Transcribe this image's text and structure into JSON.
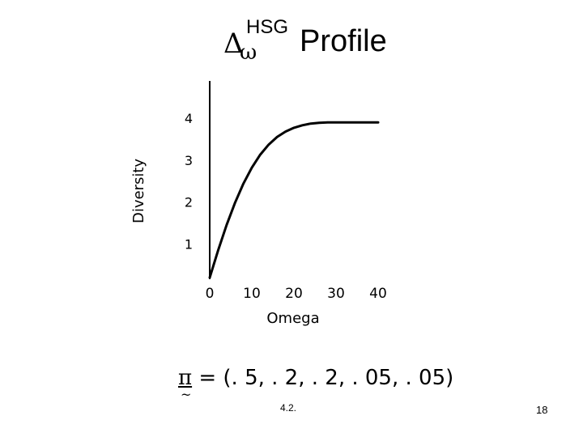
{
  "title": {
    "delta": "Δ",
    "subscript": "ω",
    "superscript": "HSG",
    "main": "Profile"
  },
  "chart_data": {
    "type": "line",
    "xlabel": "Omega",
    "ylabel": "Diversity",
    "x_ticks": [
      "0",
      "10",
      "20",
      "30",
      "40"
    ],
    "y_ticks": [
      "1",
      "2",
      "3",
      "4"
    ],
    "xlim": [
      0,
      40
    ],
    "ylim": [
      0.2,
      4.0
    ],
    "grid": false,
    "series": [
      {
        "x": [
          0,
          2,
          4,
          6,
          8,
          10,
          12,
          14,
          16,
          18,
          20,
          22,
          24,
          26,
          28,
          30,
          35,
          40
        ],
        "y": [
          0.2,
          0.85,
          1.45,
          1.98,
          2.44,
          2.82,
          3.13,
          3.37,
          3.55,
          3.68,
          3.77,
          3.83,
          3.87,
          3.89,
          3.9,
          3.9,
          3.9,
          3.9
        ],
        "color": "#000000"
      }
    ]
  },
  "formula": {
    "symbol": "π",
    "tilde": "~",
    "text": " = (. 5, . 2, . 2, . 05, . 05)"
  },
  "footer": {
    "section": "4.2.",
    "page": "18"
  }
}
